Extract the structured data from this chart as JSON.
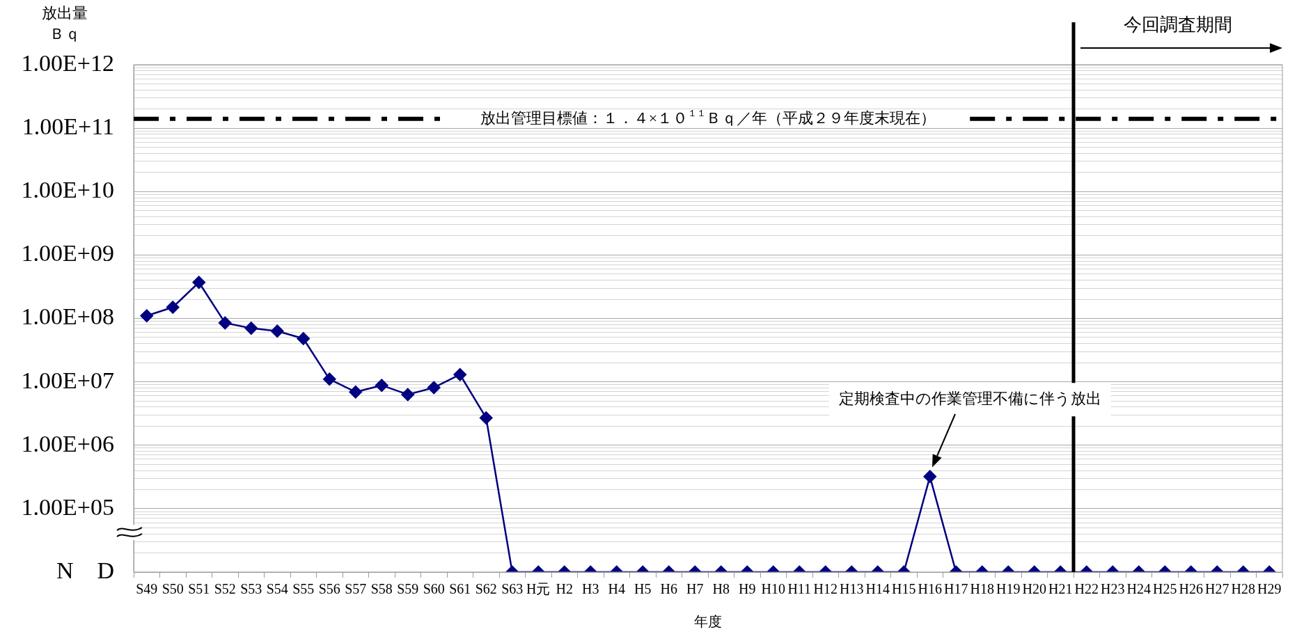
{
  "chart_data": {
    "type": "line",
    "xlabel": "年度",
    "ylabel": "放出量Ｂｑ",
    "categories": [
      "S49",
      "S50",
      "S51",
      "S52",
      "S53",
      "S54",
      "S55",
      "S56",
      "S57",
      "S58",
      "S59",
      "S60",
      "S61",
      "S62",
      "S63",
      "H元",
      "H2",
      "H3",
      "H4",
      "H5",
      "H6",
      "H7",
      "H8",
      "H9",
      "H10",
      "H11",
      "H12",
      "H13",
      "H14",
      "H15",
      "H16",
      "H17",
      "H18",
      "H19",
      "H20",
      "H21",
      "H22",
      "H23",
      "H24",
      "H25",
      "H26",
      "H27",
      "H28",
      "H29"
    ],
    "series": [
      {
        "color": "#000080",
        "values": [
          110000000.0,
          150000000.0,
          370000000.0,
          85000000.0,
          70000000.0,
          63000000.0,
          48000000.0,
          11000000.0,
          6900000.0,
          8800000.0,
          6300000.0,
          8100000.0,
          13000000.0,
          2700000.0,
          10000.0,
          10000.0,
          10000.0,
          10000.0,
          10000.0,
          10000.0,
          10000.0,
          10000.0,
          10000.0,
          10000.0,
          10000.0,
          10000.0,
          10000.0,
          10000.0,
          10000.0,
          10000.0,
          320000.0,
          10000.0,
          10000.0,
          10000.0,
          10000.0,
          10000.0,
          10000.0,
          10000.0,
          10000.0,
          10000.0,
          10000.0,
          10000.0,
          10000.0,
          10000.0
        ]
      }
    ],
    "log": true,
    "ylim": [
      10000.0,
      1000000000000.0
    ],
    "yticks": [
      {
        "value": 10000.0,
        "label": "N　D"
      },
      {
        "value": 20000.0,
        "label": null
      },
      {
        "value": 30000.0,
        "label": null
      },
      {
        "value": 40000.0,
        "label": null
      },
      {
        "value": 50000.0,
        "label": null
      },
      {
        "value": 60000.0,
        "label": null
      },
      {
        "value": 70000.0,
        "label": null
      },
      {
        "value": 80000.0,
        "label": null
      },
      {
        "value": 90000.0,
        "label": null
      },
      {
        "value": 100000.0,
        "label": "1.00E+05"
      },
      {
        "value": 200000.0,
        "label": null
      },
      {
        "value": 300000.0,
        "label": null
      },
      {
        "value": 400000.0,
        "label": null
      },
      {
        "value": 500000.0,
        "label": null
      },
      {
        "value": 600000.0,
        "label": null
      },
      {
        "value": 700000.0,
        "label": null
      },
      {
        "value": 800000.0,
        "label": null
      },
      {
        "value": 900000.0,
        "label": null
      },
      {
        "value": 1000000.0,
        "label": "1.00E+06"
      },
      {
        "value": 2000000.0,
        "label": null
      },
      {
        "value": 3000000.0,
        "label": null
      },
      {
        "value": 4000000.0,
        "label": null
      },
      {
        "value": 5000000.0,
        "label": null
      },
      {
        "value": 6000000.0,
        "label": null
      },
      {
        "value": 7000000.0,
        "label": null
      },
      {
        "value": 8000000.0,
        "label": null
      },
      {
        "value": 9000000.0,
        "label": null
      },
      {
        "value": 10000000.0,
        "label": "1.00E+07"
      },
      {
        "value": 20000000.0,
        "label": null
      },
      {
        "value": 30000000.0,
        "label": null
      },
      {
        "value": 40000000.0,
        "label": null
      },
      {
        "value": 50000000.0,
        "label": null
      },
      {
        "value": 60000000.0,
        "label": null
      },
      {
        "value": 70000000.0,
        "label": null
      },
      {
        "value": 80000000.0,
        "label": null
      },
      {
        "value": 90000000.0,
        "label": null
      },
      {
        "value": 100000000.0,
        "label": "1.00E+08"
      },
      {
        "value": 200000000.0,
        "label": null
      },
      {
        "value": 300000000.0,
        "label": null
      },
      {
        "value": 400000000.0,
        "label": null
      },
      {
        "value": 500000000.0,
        "label": null
      },
      {
        "value": 600000000.0,
        "label": null
      },
      {
        "value": 700000000.0,
        "label": null
      },
      {
        "value": 800000000.0,
        "label": null
      },
      {
        "value": 900000000.0,
        "label": null
      },
      {
        "value": 1000000000.0,
        "label": "1.00E+09"
      },
      {
        "value": 2000000000.0,
        "label": null
      },
      {
        "value": 3000000000.0,
        "label": null
      },
      {
        "value": 4000000000.0,
        "label": null
      },
      {
        "value": 5000000000.0,
        "label": null
      },
      {
        "value": 6000000000.0,
        "label": null
      },
      {
        "value": 7000000000.0,
        "label": null
      },
      {
        "value": 8000000000.0,
        "label": null
      },
      {
        "value": 9000000000.0,
        "label": null
      },
      {
        "value": 10000000000.0,
        "label": "1.00E+10"
      },
      {
        "value": 20000000000.0,
        "label": null
      },
      {
        "value": 30000000000.0,
        "label": null
      },
      {
        "value": 40000000000.0,
        "label": null
      },
      {
        "value": 50000000000.0,
        "label": null
      },
      {
        "value": 60000000000.0,
        "label": null
      },
      {
        "value": 70000000000.0,
        "label": null
      },
      {
        "value": 80000000000.0,
        "label": null
      },
      {
        "value": 90000000000.0,
        "label": null
      },
      {
        "value": 100000000000.0,
        "label": "1.00E+11"
      },
      {
        "value": 200000000000.0,
        "label": null
      },
      {
        "value": 300000000000.0,
        "label": null
      },
      {
        "value": 400000000000.0,
        "label": null
      },
      {
        "value": 500000000000.0,
        "label": null
      },
      {
        "value": 600000000000.0,
        "label": null
      },
      {
        "value": 700000000000.0,
        "label": null
      },
      {
        "value": 800000000000.0,
        "label": null
      },
      {
        "value": 900000000000.0,
        "label": null
      },
      {
        "value": 1000000000000.0,
        "label": "1.00E+12"
      }
    ],
    "grid": "y",
    "legend": false,
    "marker": "diamond",
    "line_style": "solid",
    "ref_lines": [
      {
        "axis": "y",
        "value": 140000000000.0,
        "label": "放出管理目標値：１．４×１０$^{１１}$Ｂｑ／年（平成２９年度末現在）",
        "color": "#000000",
        "line_style": "dashdot"
      },
      {
        "axis": "x",
        "value": "H22",
        "label": "今回調査期間",
        "color": "#000000",
        "line_style": "solid"
      }
    ],
    "annotations": [
      "定期検査中の作業管理不備に伴う放出"
    ]
  }
}
